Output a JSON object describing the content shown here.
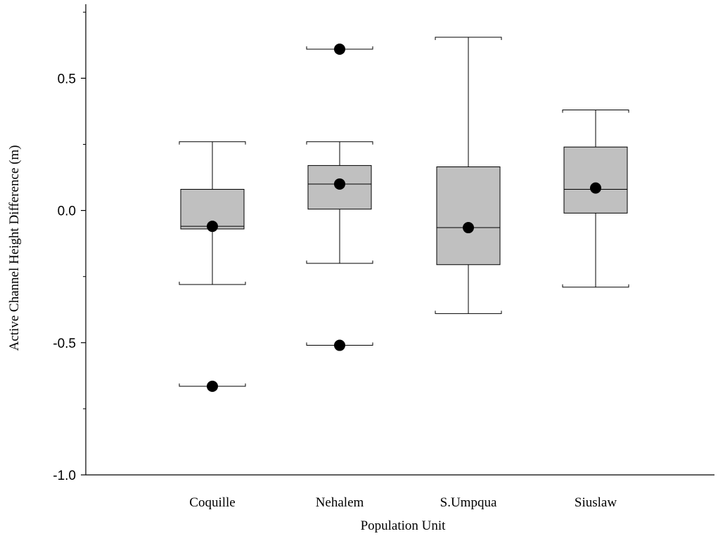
{
  "chart_data": {
    "type": "box",
    "xlabel": "Population Unit",
    "ylabel": "Active Channel Height Difference (m)",
    "ylim": [
      -1.0,
      0.78
    ],
    "y_major_ticks": [
      -1.0,
      -0.5,
      0.0,
      0.5
    ],
    "y_major_tick_labels": [
      "-1.0",
      "-0.5",
      "0.0",
      "0.5"
    ],
    "y_minor_ticks": [
      -0.75,
      -0.25,
      0.25,
      0.75
    ],
    "grid": false,
    "legend": "none",
    "categories": [
      "Coquille",
      "Nehalem",
      "S.Umpqua",
      "Siuslaw"
    ],
    "boxes": [
      {
        "category": "Coquille",
        "whisker_low": -0.28,
        "q1": -0.07,
        "median": -0.06,
        "q3": 0.08,
        "whisker_high": 0.26,
        "mean": -0.06,
        "outliers": [
          -0.665
        ]
      },
      {
        "category": "Nehalem",
        "whisker_low": -0.2,
        "q1": 0.005,
        "median": 0.1,
        "q3": 0.17,
        "whisker_high": 0.26,
        "mean": 0.1,
        "outliers": [
          0.61,
          -0.51
        ]
      },
      {
        "category": "S.Umpqua",
        "whisker_low": -0.39,
        "q1": -0.205,
        "median": -0.065,
        "q3": 0.165,
        "whisker_high": 0.655,
        "mean": -0.065,
        "outliers": []
      },
      {
        "category": "Siuslaw",
        "whisker_low": -0.29,
        "q1": -0.01,
        "median": 0.08,
        "q3": 0.24,
        "whisker_high": 0.38,
        "mean": 0.085,
        "outliers": []
      }
    ],
    "colors": {
      "box_fill": "#c0c0c0",
      "stroke": "#000000",
      "marker": "#000000"
    }
  }
}
